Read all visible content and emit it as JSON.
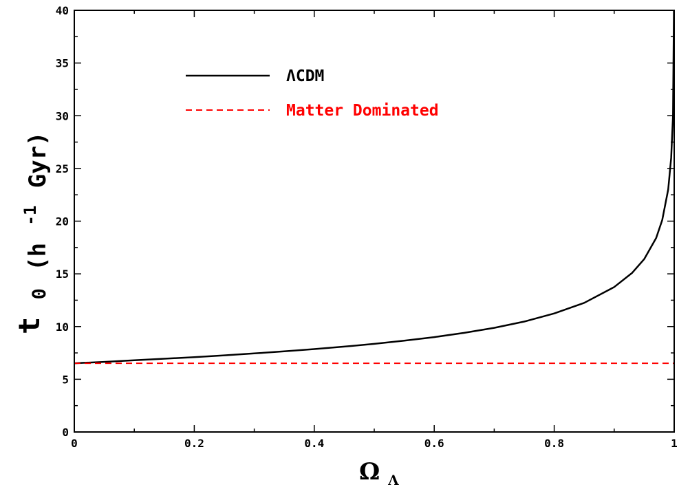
{
  "chart_data": {
    "type": "line",
    "xlabel": {
      "main": "Ω",
      "sub": "Λ"
    },
    "ylabel": {
      "t": "t",
      "sub0": "0",
      "open": "(h",
      "sup": "-1",
      "rest": " Gyr)"
    },
    "xlim": [
      0,
      1
    ],
    "ylim": [
      0,
      40
    ],
    "x_ticks": [
      0,
      0.2,
      0.4,
      0.6,
      0.8,
      1
    ],
    "x_tick_labels": [
      "0",
      "0.2",
      "0.4",
      "0.6",
      "0.8",
      "1"
    ],
    "y_ticks": [
      0,
      5,
      10,
      15,
      20,
      25,
      30,
      35,
      40
    ],
    "y_tick_labels": [
      "0",
      "5",
      "10",
      "15",
      "20",
      "25",
      "30",
      "35",
      "40"
    ],
    "grid": false,
    "legend_position": "top-left",
    "series": [
      {
        "name": "ΛCDM",
        "color": "#000000",
        "dash": "solid",
        "x": [
          0,
          0.05,
          0.1,
          0.15,
          0.2,
          0.25,
          0.3,
          0.35,
          0.4,
          0.45,
          0.5,
          0.55,
          0.6,
          0.65,
          0.7,
          0.75,
          0.8,
          0.85,
          0.9,
          0.93,
          0.95,
          0.97,
          0.98,
          0.99,
          0.995,
          0.998,
          0.9995
        ],
        "y": [
          6.52,
          6.65,
          6.8,
          6.95,
          7.1,
          7.27,
          7.45,
          7.65,
          7.86,
          8.1,
          8.36,
          8.66,
          9.0,
          9.4,
          9.88,
          10.47,
          11.24,
          12.25,
          13.75,
          15.1,
          16.4,
          18.4,
          20.1,
          23.0,
          26.0,
          30.0,
          40.0
        ]
      },
      {
        "name": "Matter Dominated",
        "color": "#ff0000",
        "dash": "dashed",
        "x": [
          0,
          1
        ],
        "y": [
          6.52,
          6.52
        ]
      }
    ]
  }
}
